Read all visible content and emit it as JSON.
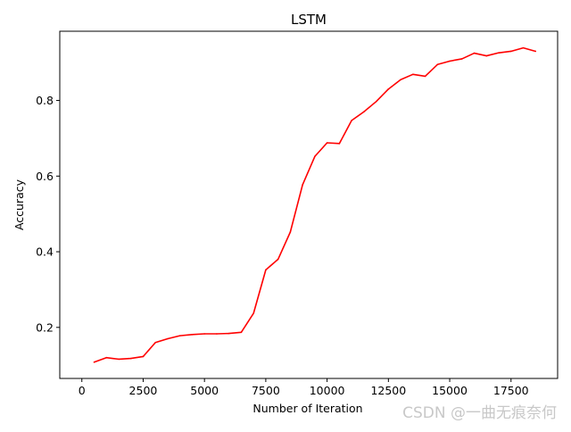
{
  "watermark": "CSDN @一曲无痕奈何",
  "chart_data": {
    "type": "line",
    "title": "LSTM",
    "xlabel": "Number of Iteration",
    "ylabel": "Accuracy",
    "xlim": [
      -900,
      19400
    ],
    "ylim": [
      0.065,
      0.983
    ],
    "xticks": [
      0,
      2500,
      5000,
      7500,
      10000,
      12500,
      15000,
      17500
    ],
    "yticks": [
      0.2,
      0.4,
      0.6,
      0.8
    ],
    "ytick_labels": [
      "0.2",
      "0.4",
      "0.6",
      "0.8"
    ],
    "grid": false,
    "series": [
      {
        "color": "#ff0000",
        "x": [
          500,
          1000,
          1500,
          2000,
          2500,
          3000,
          3500,
          4000,
          4500,
          5000,
          5500,
          6000,
          6500,
          7000,
          7500,
          8000,
          8500,
          9000,
          9500,
          10000,
          10500,
          11000,
          11500,
          12000,
          12500,
          13000,
          13500,
          14000,
          14500,
          15000,
          15500,
          16000,
          16500,
          17000,
          17500,
          18000,
          18500
        ],
        "y": [
          0.108,
          0.12,
          0.116,
          0.118,
          0.123,
          0.16,
          0.17,
          0.178,
          0.181,
          0.183,
          0.183,
          0.184,
          0.187,
          0.237,
          0.352,
          0.38,
          0.452,
          0.577,
          0.652,
          0.688,
          0.686,
          0.747,
          0.77,
          0.797,
          0.83,
          0.855,
          0.869,
          0.864,
          0.895,
          0.904,
          0.91,
          0.925,
          0.918,
          0.926,
          0.93,
          0.939,
          0.93
        ]
      }
    ]
  }
}
